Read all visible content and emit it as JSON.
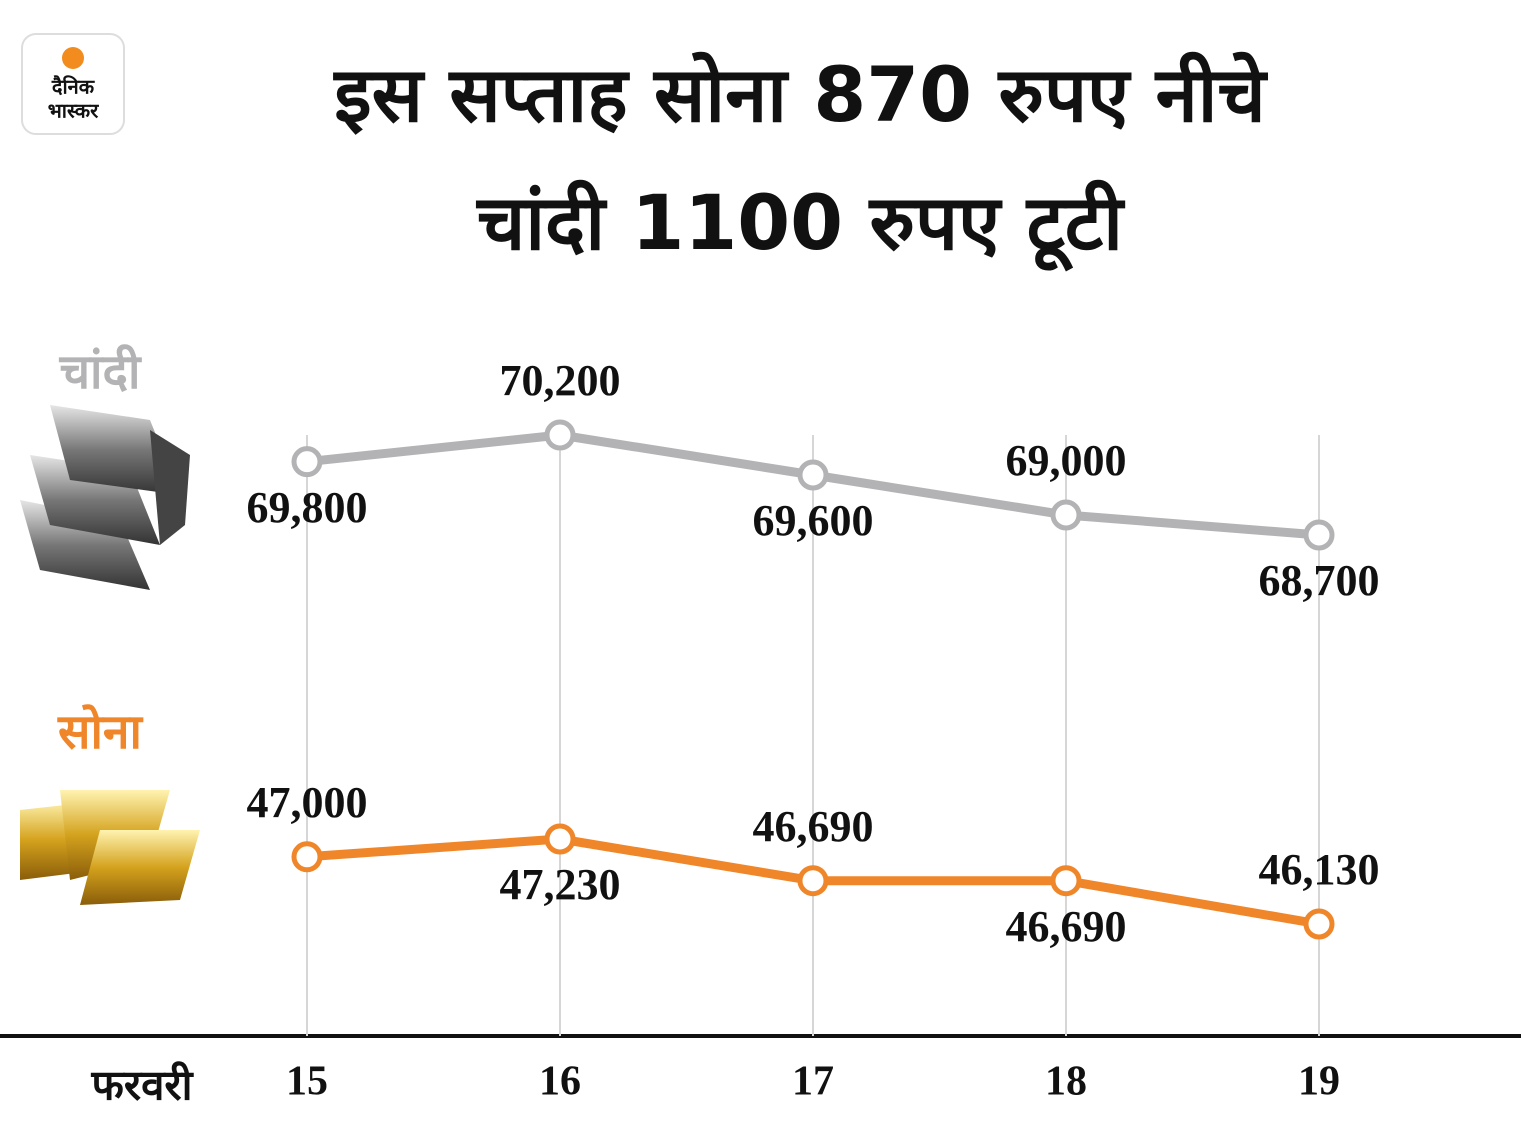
{
  "brand": [
    "दैनिक",
    "भास्कर"
  ],
  "chart_data": {
    "type": "line",
    "title": [
      "इस सप्ताह सोना 870 रुपए नीचे",
      "चांदी 1100 रुपए टूटी"
    ],
    "x_label": "फरवरी",
    "categories": [
      "15",
      "16",
      "17",
      "18",
      "19"
    ],
    "series": [
      {
        "name": "चांदी",
        "color": "#b3b3b5",
        "values": [
          69800,
          70200,
          69600,
          69000,
          68700
        ],
        "value_labels": [
          "69,800",
          "70,200",
          "69,600",
          "69,000",
          "68,700"
        ]
      },
      {
        "name": "सोना",
        "color": "#f0862a",
        "values": [
          47000,
          47230,
          46690,
          46690,
          46130
        ],
        "value_labels": [
          "47,000",
          "47,230",
          "46,690",
          "46,690",
          "46,130"
        ]
      }
    ]
  }
}
